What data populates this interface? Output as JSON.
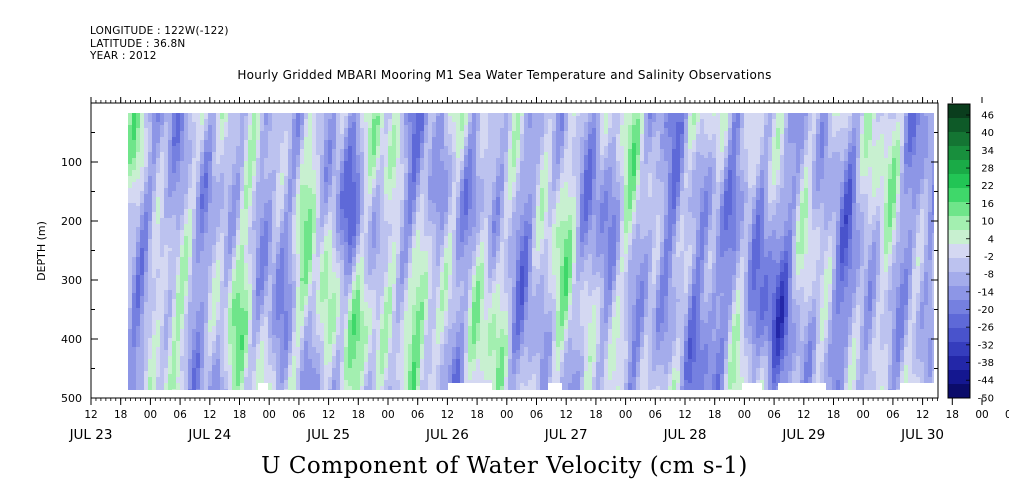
{
  "header": {
    "longitude": "LONGITUDE : 122W(-122)",
    "latitude": "LATITUDE : 36.8N",
    "year": "YEAR : 2012"
  },
  "chart_data": {
    "type": "heatmap",
    "title": "Hourly Gridded MBARI Mooring M1 Sea Water Temperature and Salinity Observations",
    "xlabel": "U Component of Water Velocity (cm s-1)",
    "ylabel": "DEPTH (m)",
    "y_ticks": [
      100,
      200,
      300,
      400,
      500
    ],
    "ylim": [
      0,
      500
    ],
    "y_inverted": true,
    "x_hour_ticks": [
      "12",
      "18",
      "00",
      "06",
      "12",
      "18",
      "00",
      "06",
      "12",
      "18",
      "00",
      "06",
      "12",
      "18",
      "00",
      "06",
      "12",
      "18",
      "00",
      "06",
      "12",
      "18",
      "00",
      "06",
      "12",
      "18",
      "00",
      "06",
      "12",
      "18",
      "00",
      "06",
      "12"
    ],
    "x_day_labels": [
      "JUL 23",
      "JUL 24",
      "JUL 25",
      "JUL 26",
      "JUL 27",
      "JUL 28",
      "JUL 29",
      "JUL 30"
    ],
    "colorbar": {
      "ticks": [
        "46",
        "40",
        "34",
        "28",
        "22",
        "16",
        "10",
        "4",
        "-2",
        "-8",
        "-14",
        "-20",
        "-26",
        "-32",
        "-38",
        "-44",
        "-50"
      ],
      "colors": [
        "#0a3d1d",
        "#0e5a28",
        "#147533",
        "#188f3d",
        "#1aab47",
        "#22c555",
        "#3fd86a",
        "#6fe58a",
        "#a3efb0",
        "#c8f0d0",
        "#d4d8f2",
        "#bcc2ef",
        "#a4aceb",
        "#8d96e6",
        "#7580e0",
        "#5e69d8",
        "#4953cc",
        "#353dbd",
        "#2327a8",
        "#141790",
        "#0b0c6a"
      ],
      "range": [
        -50,
        52
      ]
    }
  }
}
